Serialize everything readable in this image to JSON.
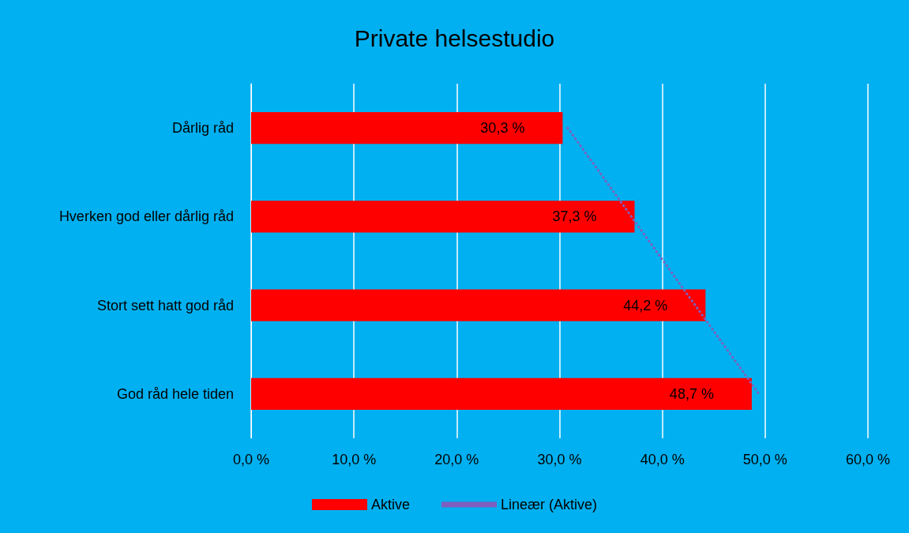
{
  "chart_data": {
    "type": "bar",
    "orientation": "horizontal",
    "title": "Private helsestudio",
    "categories": [
      "Dårlig råd",
      "Hverken god eller dårlig råd",
      "Stort sett hatt god råd",
      "God råd hele tiden"
    ],
    "series": [
      {
        "name": "Aktive",
        "color": "#ff0000",
        "values": [
          30.3,
          37.3,
          44.2,
          48.7
        ],
        "value_labels": [
          "30,3 %",
          "37,3 %",
          "44,2 %",
          "48,7 %"
        ]
      },
      {
        "name": "Lineær (Aktive)",
        "type": "line",
        "color": "#7f5fbf",
        "line_style": "dotted",
        "values": [
          30.8,
          37.0,
          43.2,
          49.4
        ]
      }
    ],
    "xlim": [
      0,
      60
    ],
    "xticks": [
      {
        "value": 0,
        "label": "0,0 %"
      },
      {
        "value": 10,
        "label": "10,0 %"
      },
      {
        "value": 20,
        "label": "20,0 %"
      },
      {
        "value": 30,
        "label": "30,0 %"
      },
      {
        "value": 40,
        "label": "40,0 %"
      },
      {
        "value": 50,
        "label": "50,0 %"
      },
      {
        "value": 60,
        "label": "60,0 %"
      }
    ],
    "grid": "x",
    "legend": "bottom"
  }
}
